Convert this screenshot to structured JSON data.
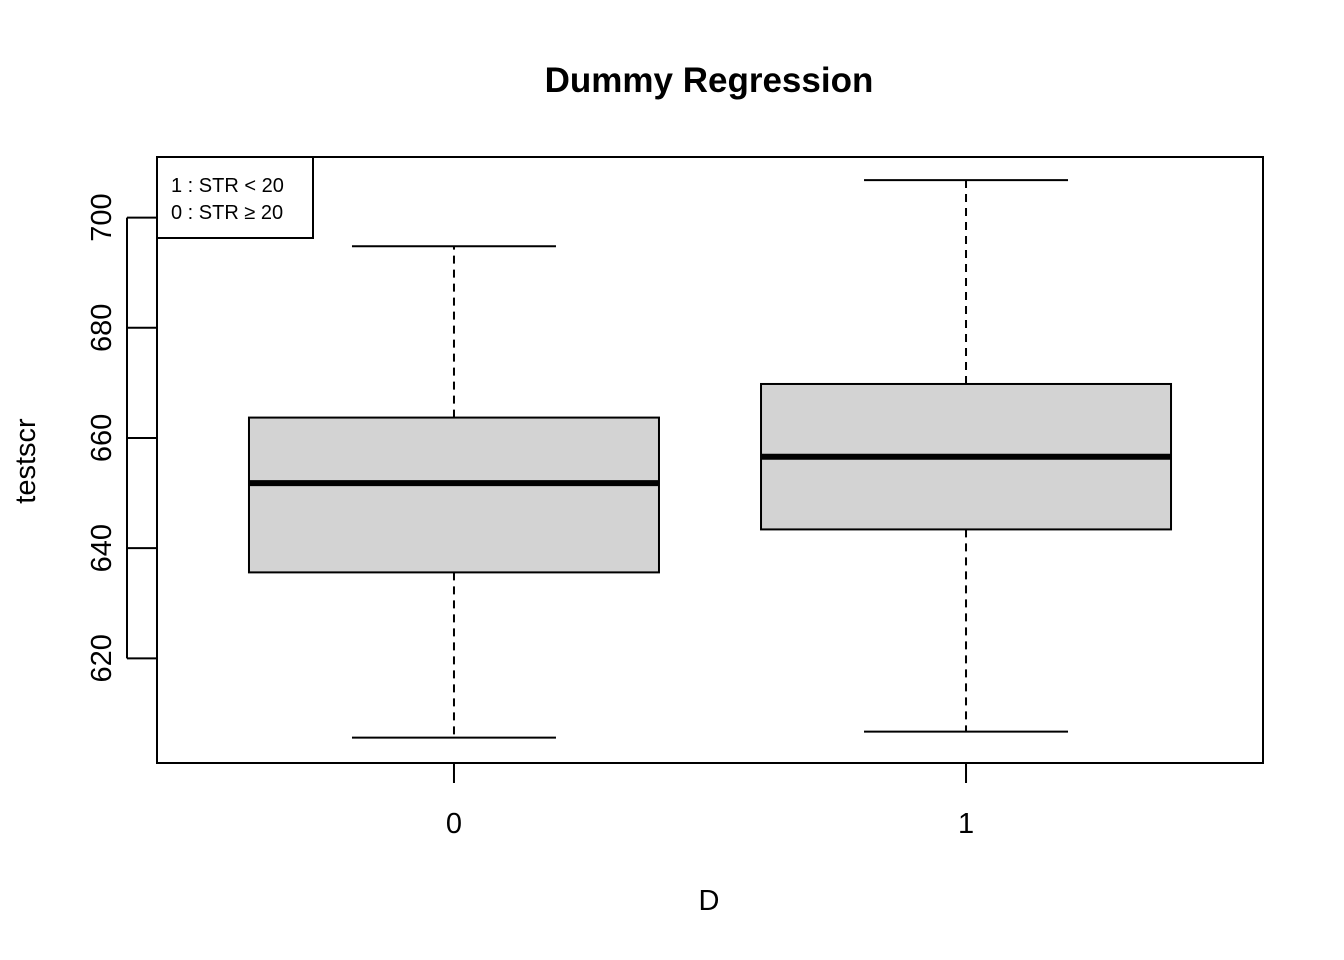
{
  "chart_data": {
    "type": "box",
    "title": "Dummy Regression",
    "xlabel": "D",
    "ylabel": "testscr",
    "categories": [
      "0",
      "1"
    ],
    "boxes": [
      {
        "category": "0",
        "whisker_low": 605.6,
        "q1": 635.6,
        "median": 651.8,
        "q3": 663.7,
        "whisker_high": 694.8
      },
      {
        "category": "1",
        "whisker_low": 606.7,
        "q1": 643.4,
        "median": 656.6,
        "q3": 669.8,
        "whisker_high": 706.8
      }
    ],
    "ylim": [
      601,
      711
    ],
    "yticks": [
      620,
      640,
      660,
      680,
      700
    ],
    "box_fill": "#d3d3d3",
    "legend": {
      "position": "top-left",
      "entries": [
        "1  : STR < 20",
        "0  : STR ≥ 20"
      ]
    },
    "grid": false
  }
}
